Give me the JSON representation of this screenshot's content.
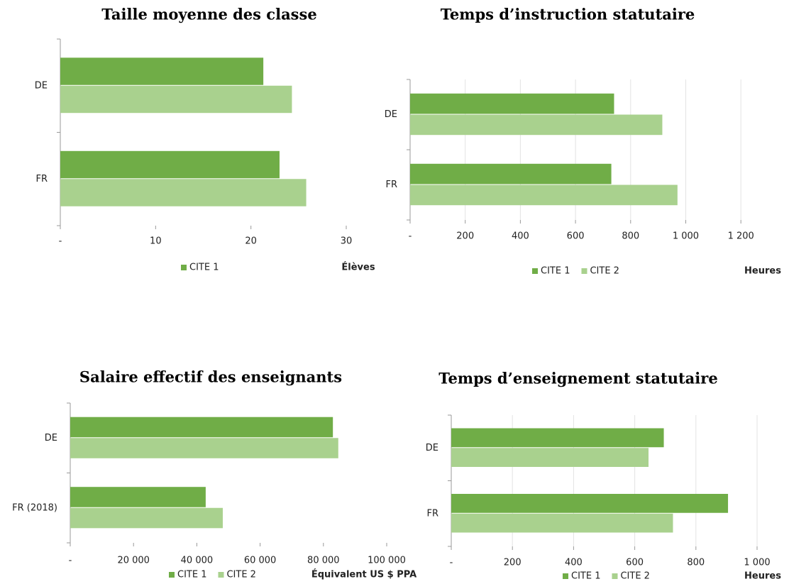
{
  "chart_data": [
    {
      "type": "bar",
      "title": "Taille moyenne des classe",
      "categories": [
        "DE",
        "FR"
      ],
      "series": [
        {
          "name": "CITE 1",
          "color": "#70ad47",
          "values": [
            21.3,
            23.0
          ]
        },
        {
          "color": "#a9d18e",
          "values": [
            24.3,
            25.8
          ]
        }
      ],
      "xlim": [
        0,
        30
      ],
      "xticks": [
        {
          "value": 0,
          "label": "-"
        },
        10,
        20,
        30
      ],
      "xlabel": "Élèves",
      "grid": false
    },
    {
      "type": "bar",
      "title": "Temps d’instruction statutaire",
      "categories": [
        "DE",
        "FR"
      ],
      "series": [
        {
          "name": "CITE 1",
          "color": "#70ad47",
          "values": [
            740,
            730
          ]
        },
        {
          "name": "CITE 2",
          "color": "#a9d18e",
          "values": [
            915,
            970
          ]
        }
      ],
      "xlim": [
        0,
        1215
      ],
      "xticks": [
        {
          "value": 0,
          "label": "-"
        },
        200,
        400,
        600,
        800,
        {
          "value": 1000,
          "label": "1 000"
        },
        {
          "value": 1200,
          "label": "1 200"
        }
      ],
      "xlabel": "Heures",
      "grid": true
    },
    {
      "type": "bar",
      "title": "Salaire effectif des enseignants",
      "categories": [
        "DE",
        "FR (2018)"
      ],
      "series": [
        {
          "name": "CITE 1",
          "color": "#70ad47",
          "values": [
            83000,
            42800
          ]
        },
        {
          "name": "CITE 2",
          "color": "#a9d18e",
          "values": [
            84700,
            48200
          ]
        }
      ],
      "xlim": [
        0,
        100000
      ],
      "xticks": [
        {
          "value": 0,
          "label": "-"
        },
        {
          "value": 20000,
          "label": "20 000"
        },
        {
          "value": 40000,
          "label": "40 000"
        },
        {
          "value": 60000,
          "label": "60 000"
        },
        {
          "value": 80000,
          "label": "80 000"
        },
        {
          "value": 100000,
          "label": "100 000"
        }
      ],
      "xlabel": "Équivalent US $ PPA",
      "grid": false
    },
    {
      "type": "bar",
      "title": "Temps d’enseignement statutaire",
      "categories": [
        "DE",
        "FR"
      ],
      "series": [
        {
          "name": "CITE 1",
          "color": "#70ad47",
          "values": [
            695,
            905
          ]
        },
        {
          "name": "CITE 2",
          "color": "#a9d18e",
          "values": [
            645,
            725
          ]
        }
      ],
      "xlim": [
        0,
        1000
      ],
      "xticks": [
        {
          "value": 0,
          "label": "-"
        },
        200,
        400,
        600,
        800,
        {
          "value": 1000,
          "label": "1 000"
        }
      ],
      "xlabel": "Heures",
      "grid": true
    }
  ]
}
